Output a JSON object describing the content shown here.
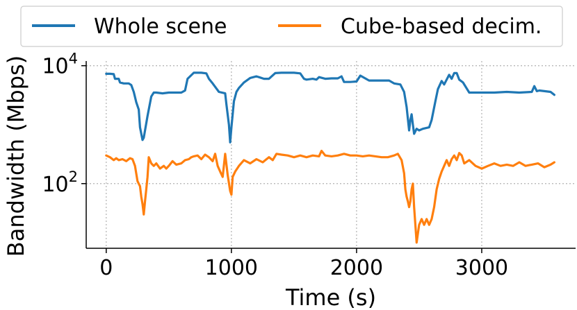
{
  "chart_data": {
    "type": "line",
    "xlabel": "Time (s)",
    "ylabel": "Bandwidth (Mbps)",
    "xscale": "linear",
    "yscale": "log",
    "xlim": [
      -160,
      3750
    ],
    "ylim": [
      8,
      12000
    ],
    "xticks": [
      0,
      1000,
      2000,
      3000
    ],
    "xtick_labels": [
      "0",
      "1000",
      "2000",
      "3000"
    ],
    "yticks": [
      100,
      10000
    ],
    "ytick_labels": [
      {
        "base": "10",
        "exp": "2"
      },
      {
        "base": "10",
        "exp": "4"
      }
    ],
    "grid": true,
    "legend_placement": "top, above plot",
    "series": [
      {
        "name": "Whole scene",
        "color": "#1f77b4",
        "x": [
          0,
          30,
          60,
          70,
          100,
          110,
          140,
          150,
          180,
          200,
          220,
          240,
          260,
          270,
          290,
          300,
          330,
          360,
          380,
          400,
          450,
          500,
          560,
          600,
          630,
          650,
          700,
          760,
          800,
          820,
          850,
          900,
          950,
          960,
          980,
          990,
          1000,
          1020,
          1040,
          1060,
          1100,
          1150,
          1200,
          1230,
          1260,
          1300,
          1350,
          1400,
          1450,
          1500,
          1550,
          1580,
          1600,
          1650,
          1680,
          1700,
          1750,
          1800,
          1850,
          1880,
          1900,
          1950,
          2000,
          2030,
          2100,
          2150,
          2200,
          2230,
          2260,
          2300,
          2350,
          2380,
          2400,
          2420,
          2430,
          2440,
          2450,
          2460,
          2480,
          2500,
          2530,
          2580,
          2600,
          2630,
          2650,
          2680,
          2700,
          2720,
          2740,
          2760,
          2780,
          2800,
          2820,
          2850,
          2900,
          2950,
          3000,
          3100,
          3200,
          3300,
          3400,
          3420,
          3440,
          3460,
          3500,
          3550,
          3580
        ],
        "values": [
          7300,
          7300,
          7200,
          6000,
          6000,
          5200,
          5000,
          5000,
          5000,
          4700,
          3600,
          2400,
          1800,
          900,
          550,
          600,
          1400,
          3000,
          3500,
          3500,
          3400,
          3500,
          3500,
          3500,
          3800,
          6000,
          7600,
          7600,
          7400,
          6000,
          5000,
          3600,
          3400,
          2200,
          1000,
          500,
          900,
          2500,
          3600,
          4200,
          5200,
          6200,
          6600,
          6300,
          6000,
          6000,
          7500,
          7600,
          7600,
          7600,
          7400,
          6000,
          5800,
          6000,
          5800,
          6400,
          6000,
          6100,
          6100,
          6600,
          5300,
          5300,
          5400,
          6800,
          5600,
          5600,
          5600,
          5600,
          5600,
          5000,
          4800,
          3600,
          2000,
          800,
          1200,
          1500,
          1000,
          700,
          850,
          800,
          850,
          900,
          1200,
          2500,
          4000,
          5500,
          4800,
          5800,
          7000,
          6000,
          7500,
          7500,
          5800,
          5200,
          3500,
          3500,
          3500,
          3500,
          3600,
          3500,
          3600,
          4500,
          3700,
          3800,
          3700,
          3600,
          3200
        ]
      },
      {
        "name": "Cube-based decim.",
        "color": "#ff7f0e",
        "x": [
          0,
          30,
          60,
          80,
          100,
          130,
          160,
          190,
          210,
          230,
          250,
          270,
          280,
          290,
          300,
          310,
          320,
          330,
          340,
          360,
          380,
          400,
          430,
          460,
          480,
          500,
          530,
          560,
          600,
          630,
          660,
          680,
          700,
          730,
          760,
          790,
          820,
          850,
          870,
          890,
          910,
          930,
          950,
          970,
          990,
          1000,
          1010,
          1030,
          1060,
          1100,
          1150,
          1200,
          1250,
          1300,
          1330,
          1360,
          1400,
          1450,
          1500,
          1550,
          1600,
          1650,
          1700,
          1720,
          1750,
          1800,
          1850,
          1900,
          1950,
          2000,
          2050,
          2100,
          2150,
          2200,
          2250,
          2300,
          2330,
          2360,
          2380,
          2390,
          2400,
          2410,
          2420,
          2430,
          2440,
          2450,
          2460,
          2470,
          2480,
          2500,
          2520,
          2540,
          2560,
          2580,
          2600,
          2620,
          2640,
          2660,
          2680,
          2700,
          2720,
          2740,
          2760,
          2780,
          2800,
          2820,
          2840,
          2860,
          2900,
          2950,
          3000,
          3050,
          3100,
          3150,
          3200,
          3250,
          3300,
          3350,
          3400,
          3450,
          3500,
          3550,
          3580
        ],
        "values": [
          300,
          280,
          250,
          270,
          250,
          260,
          240,
          270,
          260,
          200,
          110,
          90,
          60,
          45,
          30,
          50,
          80,
          130,
          280,
          220,
          200,
          220,
          180,
          200,
          180,
          200,
          240,
          210,
          220,
          250,
          260,
          280,
          290,
          300,
          260,
          310,
          280,
          240,
          320,
          200,
          160,
          130,
          320,
          140,
          75,
          65,
          130,
          160,
          200,
          250,
          220,
          260,
          230,
          280,
          250,
          320,
          310,
          300,
          280,
          300,
          280,
          300,
          290,
          360,
          300,
          290,
          300,
          320,
          300,
          300,
          290,
          300,
          290,
          280,
          280,
          300,
          320,
          250,
          150,
          80,
          60,
          50,
          40,
          50,
          80,
          100,
          40,
          20,
          10,
          20,
          25,
          20,
          25,
          20,
          25,
          40,
          80,
          120,
          160,
          200,
          250,
          200,
          260,
          300,
          250,
          330,
          300,
          220,
          250,
          200,
          180,
          200,
          220,
          200,
          210,
          200,
          230,
          200,
          210,
          220,
          190,
          210,
          230
        ]
      }
    ]
  }
}
